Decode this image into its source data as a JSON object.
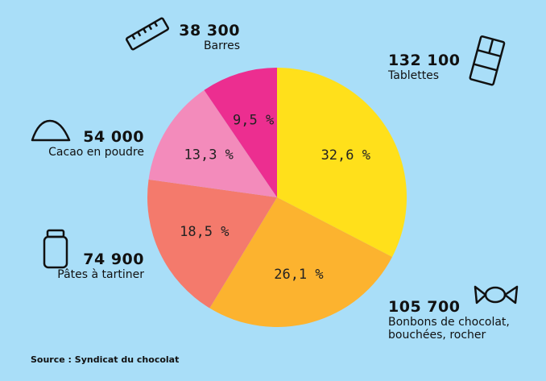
{
  "chart_data": {
    "type": "pie",
    "categories": [
      "Tablettes",
      "Bonbons de chocolat, bouchées, rocher",
      "Pâtes à tartiner",
      "Cacao en poudre",
      "Barres"
    ],
    "amounts": [
      "132 100",
      "105 700",
      "74 900",
      "54 000",
      "38 300"
    ],
    "values": [
      32.6,
      26.1,
      18.5,
      13.3,
      9.5
    ],
    "value_labels": [
      "32,6 %",
      "26,1 %",
      "18,5 %",
      "13,3 %",
      "9,5 %"
    ],
    "colors": [
      "#ffe01b",
      "#fcb32f",
      "#f47a6c",
      "#f38bbb",
      "#ec2e90"
    ],
    "source": "Source : Syndicat du chocolat"
  }
}
